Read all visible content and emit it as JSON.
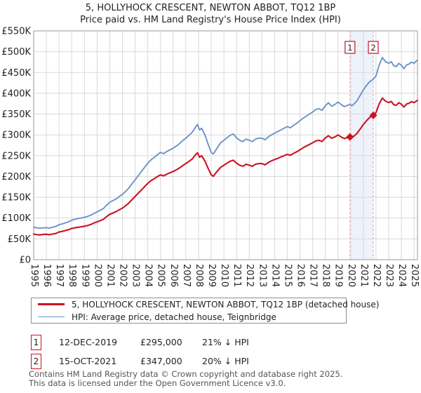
{
  "header": {
    "title": "5, HOLLYHOCK CRESCENT, NEWTON ABBOT, TQ12 1BP",
    "subtitle": "Price paid vs. HM Land Registry's House Price Index (HPI)"
  },
  "legend": {
    "items": [
      {
        "label": "5, HOLLYHOCK CRESCENT, NEWTON ABBOT, TQ12 1BP (detached house)",
        "color": "#cc1122",
        "thickness": 3
      },
      {
        "label": "HPI: Average price, detached house, Teignbridge",
        "color": "#6b93c8",
        "thickness": 2.5
      }
    ]
  },
  "sales_table": [
    {
      "num": "1",
      "date": "12-DEC-2019",
      "price": "£295,000",
      "note": "21% ↓ HPI"
    },
    {
      "num": "2",
      "date": "15-OCT-2021",
      "price": "£347,000",
      "note": "20% ↓ HPI"
    }
  ],
  "footer": {
    "line1": "Contains HM Land Registry data © Crown copyright and database right 2025.",
    "line2": "This data is licensed under the Open Government Licence v3.0."
  },
  "chart_data": {
    "type": "line",
    "title": "5, HOLLYHOCK CRESCENT, NEWTON ABBOT, TQ12 1BP",
    "subtitle": "Price paid vs. HM Land Registry's House Price Index (HPI)",
    "x_range": [
      1995,
      2025.27
    ],
    "y_range": [
      0,
      550000
    ],
    "y_tick_step": 50000,
    "y_ticks": [
      "£0",
      "£50K",
      "£100K",
      "£150K",
      "£200K",
      "£250K",
      "£300K",
      "£350K",
      "£400K",
      "£450K",
      "£500K",
      "£550K"
    ],
    "x_ticks": [
      1995,
      1996,
      1997,
      1998,
      1999,
      2000,
      2001,
      2002,
      2003,
      2004,
      2005,
      2006,
      2007,
      2008,
      2009,
      2010,
      2011,
      2012,
      2013,
      2014,
      2015,
      2016,
      2017,
      2018,
      2019,
      2020,
      2021,
      2022,
      2023,
      2024,
      2025
    ],
    "grid": true,
    "legend_position": "bottom",
    "colors": {
      "band": "#edf2fb",
      "grid": "#d9d9d9",
      "border": "#9a9a9a",
      "dashed": "#f49a9a",
      "sale_marker": "#cc1122",
      "sale_box_border": "#cc1122",
      "tick_text": "#222222"
    },
    "highlight_band": {
      "x_start": 2019.945,
      "x_end": 2021.786
    },
    "sales": [
      {
        "label": "1",
        "x": 2019.945,
        "price": 295000,
        "date": "12-DEC-2019",
        "pct_vs_hpi": "21% ↓ HPI"
      },
      {
        "label": "2",
        "x": 2021.786,
        "price": 347000,
        "date": "15-OCT-2021",
        "pct_vs_hpi": "20% ↓ HPI"
      }
    ],
    "series": [
      {
        "name": "HPI: Average price, detached house, Teignbridge",
        "color": "#6b93c8",
        "width": 1.9,
        "points": [
          [
            1995.0,
            78000
          ],
          [
            1995.25,
            76500
          ],
          [
            1995.5,
            75500
          ],
          [
            1995.75,
            76500
          ],
          [
            1996.0,
            77000
          ],
          [
            1996.25,
            76000
          ],
          [
            1996.5,
            78000
          ],
          [
            1996.75,
            80000
          ],
          [
            1997.0,
            84000
          ],
          [
            1997.25,
            86000
          ],
          [
            1997.5,
            88500
          ],
          [
            1997.75,
            91000
          ],
          [
            1998.0,
            95000
          ],
          [
            1998.25,
            97000
          ],
          [
            1998.5,
            99000
          ],
          [
            1998.75,
            100000
          ],
          [
            1999.0,
            102000
          ],
          [
            1999.25,
            104000
          ],
          [
            1999.5,
            107000
          ],
          [
            1999.75,
            111000
          ],
          [
            2000.0,
            115000
          ],
          [
            2000.25,
            119000
          ],
          [
            2000.5,
            123000
          ],
          [
            2000.75,
            131000
          ],
          [
            2001.0,
            138000
          ],
          [
            2001.25,
            142000
          ],
          [
            2001.5,
            146000
          ],
          [
            2001.75,
            152000
          ],
          [
            2002.0,
            157000
          ],
          [
            2002.25,
            164000
          ],
          [
            2002.5,
            172000
          ],
          [
            2002.75,
            182000
          ],
          [
            2003.0,
            192000
          ],
          [
            2003.25,
            202000
          ],
          [
            2003.5,
            212000
          ],
          [
            2003.75,
            222000
          ],
          [
            2004.0,
            232000
          ],
          [
            2004.25,
            240000
          ],
          [
            2004.5,
            246000
          ],
          [
            2004.75,
            252000
          ],
          [
            2005.0,
            258000
          ],
          [
            2005.25,
            255000
          ],
          [
            2005.5,
            260000
          ],
          [
            2005.75,
            264000
          ],
          [
            2006.0,
            268000
          ],
          [
            2006.25,
            273000
          ],
          [
            2006.5,
            279000
          ],
          [
            2006.75,
            286000
          ],
          [
            2007.0,
            292000
          ],
          [
            2007.25,
            299000
          ],
          [
            2007.5,
            306000
          ],
          [
            2007.75,
            318000
          ],
          [
            2007.92,
            325000
          ],
          [
            2008.08,
            312000
          ],
          [
            2008.25,
            316000
          ],
          [
            2008.5,
            300000
          ],
          [
            2008.75,
            278000
          ],
          [
            2009.0,
            258000
          ],
          [
            2009.17,
            254000
          ],
          [
            2009.33,
            262000
          ],
          [
            2009.5,
            270000
          ],
          [
            2009.75,
            281000
          ],
          [
            2010.0,
            287000
          ],
          [
            2010.25,
            293000
          ],
          [
            2010.5,
            299000
          ],
          [
            2010.75,
            302000
          ],
          [
            2011.0,
            293000
          ],
          [
            2011.25,
            287000
          ],
          [
            2011.5,
            284000
          ],
          [
            2011.75,
            290000
          ],
          [
            2012.0,
            287000
          ],
          [
            2012.25,
            284000
          ],
          [
            2012.5,
            290000
          ],
          [
            2012.75,
            292000
          ],
          [
            2013.0,
            292000
          ],
          [
            2013.25,
            288000
          ],
          [
            2013.5,
            295000
          ],
          [
            2013.75,
            300000
          ],
          [
            2014.0,
            304000
          ],
          [
            2014.25,
            308000
          ],
          [
            2014.5,
            312000
          ],
          [
            2014.75,
            316000
          ],
          [
            2015.0,
            320000
          ],
          [
            2015.25,
            317000
          ],
          [
            2015.5,
            323000
          ],
          [
            2015.75,
            328000
          ],
          [
            2016.0,
            334000
          ],
          [
            2016.25,
            340000
          ],
          [
            2016.5,
            345000
          ],
          [
            2016.75,
            350000
          ],
          [
            2017.0,
            355000
          ],
          [
            2017.25,
            361000
          ],
          [
            2017.5,
            363000
          ],
          [
            2017.75,
            359000
          ],
          [
            2018.0,
            370000
          ],
          [
            2018.25,
            377000
          ],
          [
            2018.5,
            369000
          ],
          [
            2018.75,
            373000
          ],
          [
            2019.0,
            379000
          ],
          [
            2019.25,
            373000
          ],
          [
            2019.5,
            368000
          ],
          [
            2019.75,
            371000
          ],
          [
            2019.95,
            373000
          ],
          [
            2020.1,
            370000
          ],
          [
            2020.25,
            374000
          ],
          [
            2020.5,
            382000
          ],
          [
            2020.75,
            395000
          ],
          [
            2021.0,
            408000
          ],
          [
            2021.25,
            419000
          ],
          [
            2021.5,
            428000
          ],
          [
            2021.79,
            434000
          ],
          [
            2022.0,
            442000
          ],
          [
            2022.25,
            468000
          ],
          [
            2022.5,
            486000
          ],
          [
            2022.75,
            476000
          ],
          [
            2023.0,
            472000
          ],
          [
            2023.2,
            476000
          ],
          [
            2023.4,
            466000
          ],
          [
            2023.6,
            464000
          ],
          [
            2023.8,
            472000
          ],
          [
            2024.0,
            467000
          ],
          [
            2024.2,
            459000
          ],
          [
            2024.4,
            468000
          ],
          [
            2024.6,
            470000
          ],
          [
            2024.8,
            475000
          ],
          [
            2025.0,
            472000
          ],
          [
            2025.27,
            480000
          ]
        ]
      },
      {
        "name": "5, HOLLYHOCK CRESCENT, NEWTON ABBOT, TQ12 1BP (detached house)",
        "color": "#cc1122",
        "width": 2.1,
        "points": [
          [
            1995.0,
            61500
          ],
          [
            1995.25,
            60000
          ],
          [
            1995.5,
            59500
          ],
          [
            1995.75,
            60500
          ],
          [
            1996.0,
            61000
          ],
          [
            1996.25,
            60000
          ],
          [
            1996.5,
            61500
          ],
          [
            1996.75,
            63000
          ],
          [
            1997.0,
            66500
          ],
          [
            1997.25,
            68000
          ],
          [
            1997.5,
            70000
          ],
          [
            1997.75,
            72000
          ],
          [
            1998.0,
            75000
          ],
          [
            1998.25,
            76500
          ],
          [
            1998.5,
            78000
          ],
          [
            1998.75,
            79000
          ],
          [
            1999.0,
            80500
          ],
          [
            1999.25,
            82000
          ],
          [
            1999.5,
            84500
          ],
          [
            1999.75,
            88000
          ],
          [
            2000.0,
            91000
          ],
          [
            2000.25,
            94000
          ],
          [
            2000.5,
            97000
          ],
          [
            2000.75,
            103500
          ],
          [
            2001.0,
            109000
          ],
          [
            2001.25,
            112000
          ],
          [
            2001.5,
            115500
          ],
          [
            2001.75,
            120000
          ],
          [
            2002.0,
            124000
          ],
          [
            2002.25,
            129500
          ],
          [
            2002.5,
            136000
          ],
          [
            2002.75,
            144000
          ],
          [
            2003.0,
            152000
          ],
          [
            2003.25,
            160000
          ],
          [
            2003.5,
            167500
          ],
          [
            2003.75,
            175500
          ],
          [
            2004.0,
            183500
          ],
          [
            2004.25,
            190000
          ],
          [
            2004.5,
            194500
          ],
          [
            2004.75,
            199500
          ],
          [
            2005.0,
            204000
          ],
          [
            2005.25,
            201500
          ],
          [
            2005.5,
            205500
          ],
          [
            2005.75,
            209000
          ],
          [
            2006.0,
            212000
          ],
          [
            2006.25,
            216000
          ],
          [
            2006.5,
            220500
          ],
          [
            2006.75,
            226000
          ],
          [
            2007.0,
            231000
          ],
          [
            2007.25,
            236500
          ],
          [
            2007.5,
            242000
          ],
          [
            2007.75,
            251500
          ],
          [
            2007.92,
            257000
          ],
          [
            2008.08,
            246500
          ],
          [
            2008.25,
            250000
          ],
          [
            2008.5,
            237000
          ],
          [
            2008.75,
            220000
          ],
          [
            2009.0,
            204000
          ],
          [
            2009.17,
            200500
          ],
          [
            2009.33,
            207000
          ],
          [
            2009.5,
            213500
          ],
          [
            2009.75,
            222000
          ],
          [
            2010.0,
            227000
          ],
          [
            2010.25,
            232000
          ],
          [
            2010.5,
            236500
          ],
          [
            2010.75,
            239000
          ],
          [
            2011.0,
            232000
          ],
          [
            2011.25,
            227000
          ],
          [
            2011.5,
            224500
          ],
          [
            2011.75,
            229500
          ],
          [
            2012.0,
            227000
          ],
          [
            2012.25,
            224500
          ],
          [
            2012.5,
            229500
          ],
          [
            2012.75,
            231000
          ],
          [
            2013.0,
            231000
          ],
          [
            2013.25,
            228000
          ],
          [
            2013.5,
            233500
          ],
          [
            2013.75,
            237500
          ],
          [
            2014.0,
            240500
          ],
          [
            2014.25,
            243500
          ],
          [
            2014.5,
            247000
          ],
          [
            2014.75,
            250000
          ],
          [
            2015.0,
            253000
          ],
          [
            2015.25,
            251000
          ],
          [
            2015.5,
            255500
          ],
          [
            2015.75,
            259500
          ],
          [
            2016.0,
            264000
          ],
          [
            2016.25,
            269000
          ],
          [
            2016.5,
            273000
          ],
          [
            2016.75,
            277000
          ],
          [
            2017.0,
            281000
          ],
          [
            2017.25,
            285500
          ],
          [
            2017.5,
            287000
          ],
          [
            2017.75,
            284000
          ],
          [
            2018.0,
            292500
          ],
          [
            2018.25,
            298000
          ],
          [
            2018.5,
            292000
          ],
          [
            2018.75,
            295000
          ],
          [
            2019.0,
            300000
          ],
          [
            2019.25,
            295000
          ],
          [
            2019.5,
            291000
          ],
          [
            2019.75,
            293500
          ],
          [
            2019.95,
            295000
          ],
          [
            2020.1,
            293000
          ],
          [
            2020.25,
            297000
          ],
          [
            2020.5,
            303500
          ],
          [
            2020.75,
            314000
          ],
          [
            2021.0,
            325000
          ],
          [
            2021.25,
            334000
          ],
          [
            2021.5,
            342000
          ],
          [
            2021.79,
            347000
          ],
          [
            2022.0,
            354000
          ],
          [
            2022.25,
            374500
          ],
          [
            2022.5,
            388500
          ],
          [
            2022.75,
            381000
          ],
          [
            2023.0,
            377500
          ],
          [
            2023.2,
            380500
          ],
          [
            2023.4,
            372500
          ],
          [
            2023.6,
            371000
          ],
          [
            2023.8,
            377500
          ],
          [
            2024.0,
            373500
          ],
          [
            2024.2,
            367000
          ],
          [
            2024.4,
            374000
          ],
          [
            2024.6,
            376000
          ],
          [
            2024.8,
            380000
          ],
          [
            2025.0,
            377500
          ],
          [
            2025.27,
            383000
          ]
        ]
      }
    ]
  }
}
